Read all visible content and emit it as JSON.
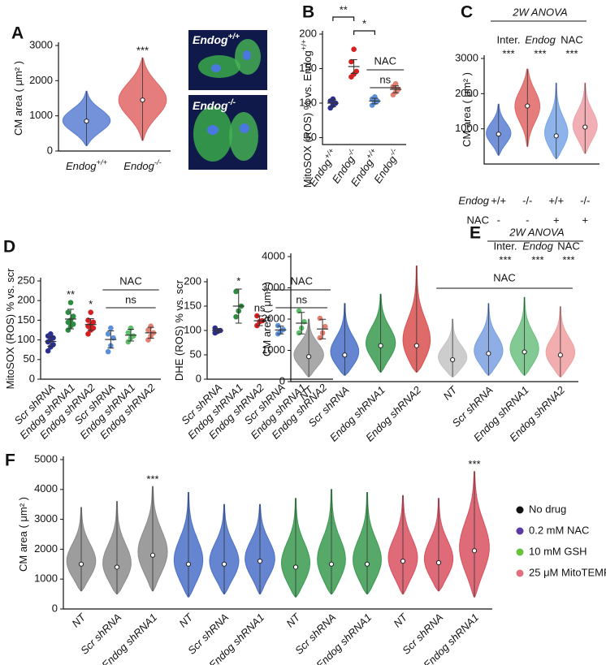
{
  "micrographs": [
    {
      "label": "Endog",
      "sup": "+/+"
    },
    {
      "label": "Endog",
      "sup": "-/-"
    }
  ],
  "chart_data": [
    {
      "type": "violin",
      "panel": "A",
      "ylabel": "CM area ( μm² )",
      "categories": [
        "Endog",
        "Endog"
      ],
      "category_sups": [
        "+/+",
        "-/-"
      ],
      "values": [
        850,
        1450
      ],
      "low": [
        150,
        300
      ],
      "high": [
        1700,
        2650
      ],
      "colors": [
        "#5b7fd4",
        "#e06666"
      ],
      "significance": [
        null,
        "***"
      ],
      "ylim": [
        0,
        3000
      ],
      "yticks": [
        0,
        1000,
        2000,
        3000
      ]
    },
    {
      "type": "dots",
      "panel": "B",
      "ylabel": "MitoSOX (ROS) % vs. Endog",
      "ylabel_sup": "+/+",
      "categories": [
        "Endog",
        "Endog",
        "Endog",
        "Endog"
      ],
      "category_sups": [
        "+/+",
        "-/-",
        "+/+",
        "-/-"
      ],
      "points": [
        [
          93,
          97,
          100,
          103,
          106
        ],
        [
          138,
          142,
          146,
          160,
          178
        ],
        [
          97,
          101,
          103,
          106,
          109
        ],
        [
          112,
          116,
          120,
          124,
          128
        ]
      ],
      "means": [
        100,
        153,
        103,
        120
      ],
      "errors": [
        5,
        10,
        4,
        5
      ],
      "colors": [
        "#2b2f8f",
        "#d42020",
        "#5b8fd8",
        "#e37f70"
      ],
      "pairwise": [
        "**",
        "*"
      ],
      "group_label": "NAC",
      "group_test": "ns",
      "ylim": [
        40,
        200
      ],
      "yticks": [
        50,
        100,
        150,
        200
      ]
    },
    {
      "type": "violin",
      "panel": "C",
      "ylabel": "CM area ( μm² )",
      "values": [
        850,
        1650,
        800,
        1050
      ],
      "low": [
        250,
        500,
        150,
        300
      ],
      "high": [
        1700,
        2700,
        2300,
        2300
      ],
      "colors": [
        "#5b7fd4",
        "#e06666",
        "#7aa6e8",
        "#f0a0a8"
      ],
      "anova_title": "2W ANOVA",
      "anova_terms": [
        "Inter.",
        "Endog",
        "NAC"
      ],
      "anova_stars": [
        "***",
        "***",
        "***"
      ],
      "design": [
        {
          "label": "Endog",
          "values": [
            "+/+",
            "-/-",
            "+/+",
            "-/-"
          ]
        },
        {
          "label": "NAC",
          "values": [
            "-",
            "-",
            "+",
            "+"
          ]
        }
      ],
      "ylim": [
        0,
        3000
      ],
      "yticks": [
        1000,
        2000,
        3000
      ]
    },
    {
      "type": "dots",
      "panel": "D",
      "ylabel": "MitoSOX (ROS) % vs. scr",
      "categories": [
        "Scr shRNA",
        "Endog shRNA1",
        "Endog shRNA2",
        "Scr shRNA",
        "Endog shRNA1",
        "Endog shRNA2"
      ],
      "points": [
        [
          72,
          82,
          88,
          95,
          100,
          105,
          110,
          115
        ],
        [
          125,
          135,
          140,
          145,
          150,
          160,
          170,
          195
        ],
        [
          115,
          125,
          130,
          135,
          138,
          145,
          150,
          170
        ],
        [
          70,
          85,
          105,
          115,
          130
        ],
        [
          95,
          105,
          110,
          118,
          130
        ],
        [
          100,
          110,
          118,
          125,
          135
        ]
      ],
      "means": [
        96,
        153,
        139,
        101,
        112,
        118
      ],
      "errors": [
        12,
        25,
        15,
        22,
        15,
        14
      ],
      "colors": [
        "#2b2f8f",
        "#2e8b40",
        "#d42020",
        "#5b8fd8",
        "#5cbf6a",
        "#e37f70"
      ],
      "significance": [
        null,
        "**",
        "*",
        null,
        null,
        null
      ],
      "group_label": "NAC",
      "group_test": "ns",
      "ylim": [
        0,
        250
      ],
      "yticks": [
        0,
        50,
        100,
        150,
        200,
        250
      ]
    },
    {
      "type": "dots",
      "ylabel": "DHE (ROS) % vs. scr",
      "categories": [
        "Scr shRNA",
        "Endog shRNA1",
        "Endog shRNA2",
        "Scr shRNA",
        "Endog shRNA1",
        "Endog shRNA2"
      ],
      "points": [
        [
          95,
          98,
          100,
          105
        ],
        [
          128,
          140,
          150,
          180
        ],
        [
          110,
          118,
          120,
          130
        ],
        [
          93,
          98,
          102,
          110
        ],
        [
          95,
          105,
          118,
          140
        ],
        [
          85,
          95,
          108,
          125
        ]
      ],
      "means": [
        100,
        150,
        120,
        101,
        115,
        103
      ],
      "errors": [
        4,
        35,
        10,
        8,
        22,
        20
      ],
      "colors": [
        "#2b2f8f",
        "#2e8b40",
        "#d42020",
        "#5b8fd8",
        "#5cbf6a",
        "#e37f70"
      ],
      "significance": [
        null,
        "*",
        "ns",
        null,
        null,
        null
      ],
      "group_label": "NAC",
      "group_test": "ns",
      "ylim": [
        0,
        200
      ],
      "yticks": [
        0,
        50,
        100,
        150,
        200
      ]
    },
    {
      "type": "violin",
      "panel": "E",
      "ylabel": "CM area ( μm² )",
      "categories": [
        "NT",
        "Scr shRNA",
        "Endog shRNA1",
        "Endog shRNA2",
        "NT",
        "Scr shRNA",
        "Endog shRNA1",
        "Endog shRNA2"
      ],
      "values": [
        800,
        850,
        1150,
        1150,
        700,
        900,
        950,
        850
      ],
      "low": [
        150,
        200,
        300,
        300,
        150,
        200,
        200,
        150
      ],
      "high": [
        2000,
        2500,
        2800,
        3700,
        2000,
        2500,
        2700,
        2400
      ],
      "colors": [
        "#9a9a9a",
        "#4a70c8",
        "#3a9a50",
        "#d95050",
        "#c4c4c4",
        "#7aa0e0",
        "#6cc080",
        "#f0a0a0"
      ],
      "anova_title": "2W ANOVA",
      "anova_terms": [
        "Inter.",
        "Endog",
        "NAC"
      ],
      "anova_stars": [
        "***",
        "***",
        "***"
      ],
      "group_label": "NAC",
      "ylim": [
        0,
        4000
      ],
      "yticks": [
        0,
        1000,
        2000,
        3000,
        4000
      ]
    },
    {
      "type": "violin",
      "panel": "F",
      "ylabel": "CM area ( μm² )",
      "categories": [
        "NT",
        "Scr shRNA",
        "Endog shRNA1",
        "NT",
        "Scr shRNA",
        "Endog shRNA1",
        "NT",
        "Scr shRNA",
        "Endog shRNA1",
        "NT",
        "Scr shRNA",
        "Endog shRNA1"
      ],
      "values": [
        1500,
        1400,
        1800,
        1500,
        1500,
        1600,
        1400,
        1500,
        1500,
        1600,
        1550,
        1950
      ],
      "low": [
        600,
        500,
        600,
        400,
        500,
        500,
        400,
        500,
        500,
        500,
        600,
        400
      ],
      "high": [
        3400,
        3600,
        4100,
        3900,
        3500,
        3500,
        3700,
        4000,
        3900,
        3800,
        3700,
        4600
      ],
      "colors": [
        "#8c8c8c",
        "#8c8c8c",
        "#8c8c8c",
        "#4a70c8",
        "#4a70c8",
        "#4a70c8",
        "#3a9a50",
        "#3a9a50",
        "#3a9a50",
        "#d95060",
        "#d95060",
        "#d95060"
      ],
      "significance": [
        null,
        null,
        "***",
        null,
        null,
        null,
        null,
        null,
        null,
        null,
        null,
        "***"
      ],
      "legend": [
        {
          "name": "No drug",
          "color": "#111111"
        },
        {
          "name": "0.2 mM NAC",
          "color": "#5a3aa0"
        },
        {
          "name": "10 mM GSH",
          "color": "#6cbf3a"
        },
        {
          "name": "25 μM MitoTEMPO",
          "color": "#e07080"
        }
      ],
      "ylim": [
        0,
        5000
      ],
      "yticks": [
        0,
        1000,
        2000,
        3000,
        4000,
        5000
      ]
    }
  ]
}
